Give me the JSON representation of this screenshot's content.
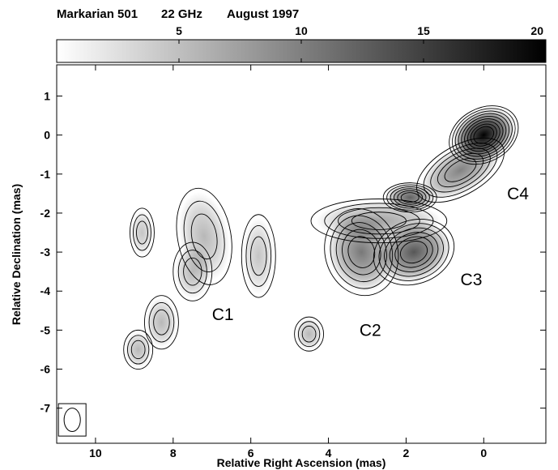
{
  "header": {
    "source": "Markarian 501",
    "frequency": "22 GHz",
    "epoch": "August 1997"
  },
  "colorbar": {
    "range": [
      0,
      20
    ],
    "ticks": [
      "5",
      "10",
      "15",
      "20"
    ],
    "tick_values": [
      5,
      10,
      15,
      20
    ],
    "gradient_colors": [
      "#ffffff",
      "#000000"
    ]
  },
  "chart_data": {
    "type": "heatmap",
    "subtype": "radio contour map",
    "title": "Markarian 501    22 GHz    August 1997",
    "xlabel": "Relative Right Ascension (mas)",
    "ylabel": "Relative Declination (mas)",
    "xlim": [
      11,
      -1.6
    ],
    "ylim": [
      -7.9,
      1.8
    ],
    "x_reversed": true,
    "x_ticks": [
      10,
      8,
      6,
      4,
      2,
      0
    ],
    "x_tick_labels": [
      "10",
      "8",
      "6",
      "4",
      "2",
      "0"
    ],
    "y_ticks": [
      1,
      0,
      -1,
      -2,
      -3,
      -4,
      -5,
      -6,
      -7
    ],
    "y_tick_labels": [
      "1",
      "0",
      "-1",
      "-2",
      "-3",
      "-4",
      "-5",
      "-6",
      "-7"
    ],
    "grid": false,
    "components": [
      {
        "label": "C1",
        "x": 7.0,
        "y": -4.6
      },
      {
        "label": "C2",
        "x": 3.2,
        "y": -5.0
      },
      {
        "label": "C3",
        "x": 0.6,
        "y": -3.7
      },
      {
        "label": "C4",
        "x": -0.6,
        "y": -1.5
      }
    ],
    "features": [
      {
        "name": "core",
        "x": 0.0,
        "y": 0.0,
        "rx": 0.75,
        "ry": 0.55,
        "angle": -28,
        "peak": 20
      },
      {
        "name": "knot-upper-jet",
        "x": 1.9,
        "y": -1.6,
        "rx": 0.55,
        "ry": 0.3,
        "angle": 0,
        "peak": 11
      },
      {
        "name": "knot-C3",
        "x": 1.8,
        "y": -3.0,
        "rx": 0.85,
        "ry": 0.65,
        "angle": -20,
        "peak": 12
      },
      {
        "name": "knot-C2",
        "x": 3.15,
        "y": -3.0,
        "rx": 0.75,
        "ry": 0.9,
        "angle": -15,
        "peak": 9
      },
      {
        "name": "knot-jet-bridge",
        "x": 2.7,
        "y": -2.2,
        "rx": 1.4,
        "ry": 0.45,
        "angle": 0,
        "peak": 5
      },
      {
        "name": "knot-C4",
        "x": 0.6,
        "y": -0.9,
        "rx": 1.0,
        "ry": 0.5,
        "angle": -30,
        "peak": 8
      },
      {
        "name": "blob-C1-a",
        "x": 7.2,
        "y": -2.6,
        "rx": 0.55,
        "ry": 1.0,
        "angle": -10,
        "peak": 3
      },
      {
        "name": "blob-C1-b",
        "x": 7.5,
        "y": -3.5,
        "rx": 0.4,
        "ry": 0.6,
        "angle": 0,
        "peak": 3
      },
      {
        "name": "blob-C1-c",
        "x": 5.8,
        "y": -3.1,
        "rx": 0.35,
        "ry": 0.85,
        "angle": 0,
        "peak": 2
      },
      {
        "name": "blob-south-1",
        "x": 8.3,
        "y": -4.8,
        "rx": 0.35,
        "ry": 0.55,
        "angle": 0,
        "peak": 3
      },
      {
        "name": "blob-south-2",
        "x": 8.9,
        "y": -5.5,
        "rx": 0.3,
        "ry": 0.4,
        "angle": 0,
        "peak": 3
      },
      {
        "name": "blob-south-3",
        "x": 4.5,
        "y": -5.1,
        "rx": 0.3,
        "ry": 0.35,
        "angle": 0,
        "peak": 3
      },
      {
        "name": "blob-west",
        "x": 8.8,
        "y": -2.5,
        "rx": 0.25,
        "ry": 0.5,
        "angle": 0,
        "peak": 2
      }
    ],
    "beam": {
      "x": 10.6,
      "y": -7.3,
      "rx": 0.35,
      "ry": 0.5
    }
  }
}
